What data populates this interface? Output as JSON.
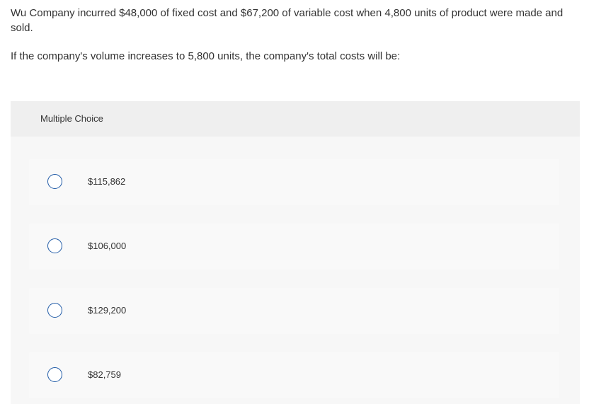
{
  "question": {
    "text": "Wu Company incurred $48,000 of fixed cost and $67,200 of variable cost when 4,800 units of product were made and sold.",
    "prompt": "If the company's volume increases to 5,800 units, the company's total costs will be:"
  },
  "multiple_choice": {
    "header": "Multiple Choice",
    "options": [
      "$115,862",
      "$106,000",
      "$129,200",
      "$82,759"
    ]
  }
}
